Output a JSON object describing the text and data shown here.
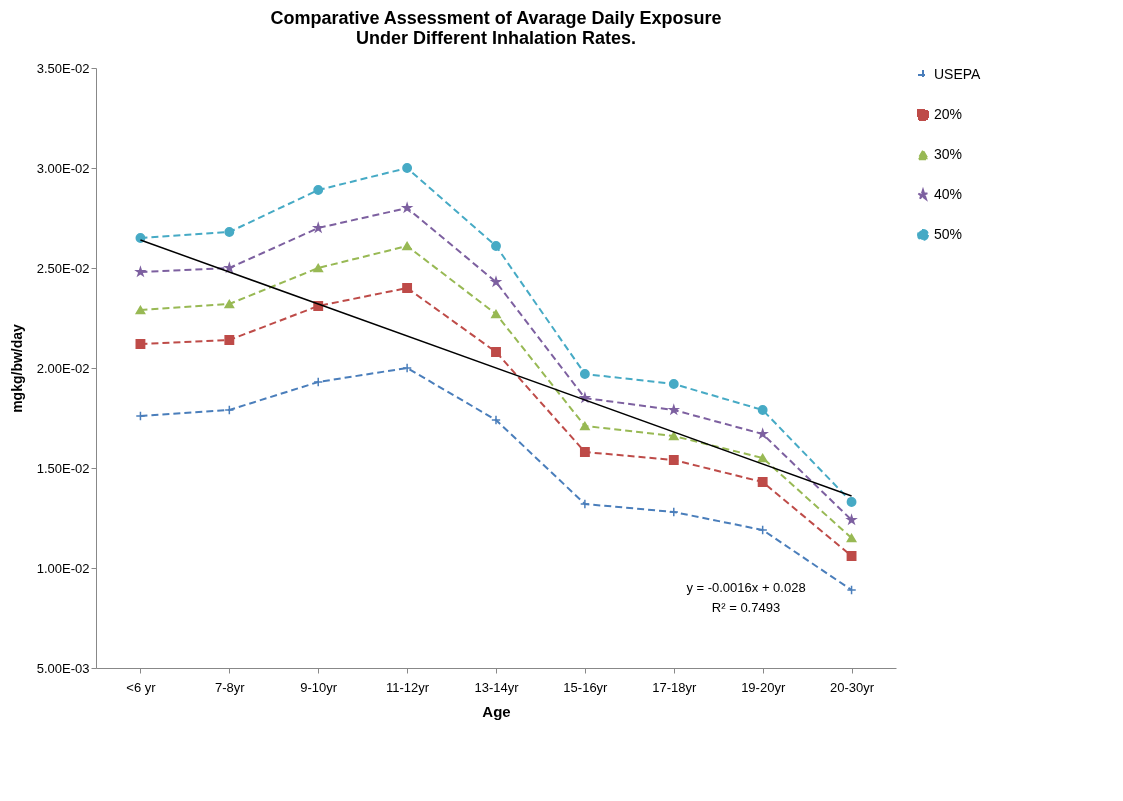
{
  "chart_data": {
    "type": "line",
    "title": "Comparative Assessment of Avarage Daily Exposure\nUnder Different Inhalation Rates.",
    "xlabel": "Age",
    "ylabel": "mgkg/bw/day",
    "categories": [
      "<6 yr",
      "7-8yr",
      "9-10yr",
      "11-12yr",
      "13-14yr",
      "15-16yr",
      "17-18yr",
      "19-20yr",
      "20-30yr"
    ],
    "series": [
      {
        "name": "USEPA",
        "color": "#4a7ebb",
        "marker": "cross",
        "values": [
          0.0176,
          0.0179,
          0.0193,
          0.02,
          0.0174,
          0.0132,
          0.0128,
          0.0119,
          0.0089
        ]
      },
      {
        "name": "20%",
        "color": "#be4b48",
        "marker": "square",
        "values": [
          0.0212,
          0.0214,
          0.0231,
          0.024,
          0.0208,
          0.0158,
          0.0154,
          0.0143,
          0.0106
        ]
      },
      {
        "name": "30%",
        "color": "#98b954",
        "marker": "triangle",
        "values": [
          0.0229,
          0.0232,
          0.025,
          0.0261,
          0.0227,
          0.0171,
          0.0166,
          0.0155,
          0.0115
        ]
      },
      {
        "name": "40%",
        "color": "#7d60a0",
        "marker": "star",
        "values": [
          0.0248,
          0.025,
          0.027,
          0.028,
          0.0243,
          0.0185,
          0.0179,
          0.0167,
          0.0124
        ]
      },
      {
        "name": "50%",
        "color": "#46aac5",
        "marker": "circle",
        "values": [
          0.0265,
          0.0268,
          0.0289,
          0.03,
          0.0261,
          0.0197,
          0.0192,
          0.0179,
          0.0133
        ]
      },
      {
        "type": "line",
        "color": "#000000",
        "line_style": "solid",
        "x": [
          "<6 yr",
          "20-30yr"
        ],
        "values": [
          0.0264,
          0.0136
        ]
      }
    ],
    "ylim": [
      0.005,
      0.035
    ],
    "yticks": [
      {
        "value": 0.005,
        "label": "5.00E-03"
      },
      {
        "value": 0.01,
        "label": "1.00E-02"
      },
      {
        "value": 0.015,
        "label": "1.50E-02"
      },
      {
        "value": 0.02,
        "label": "2.00E-02"
      },
      {
        "value": 0.025,
        "label": "2.50E-02"
      },
      {
        "value": 0.03,
        "label": "3.00E-02"
      },
      {
        "value": 0.035,
        "label": "3.50E-02"
      }
    ],
    "grid": false,
    "legend": "right",
    "line_style": "dashed",
    "annotations": [
      "y = -0.0016x + 0.028",
      "R² = 0.7493"
    ]
  }
}
